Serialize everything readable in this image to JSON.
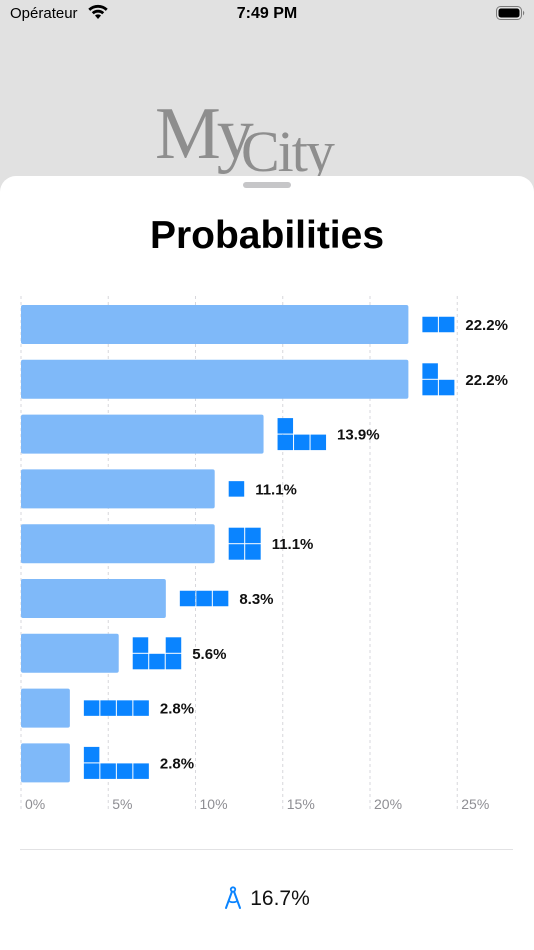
{
  "status_bar": {
    "carrier": "Opérateur",
    "time": "7:49 PM"
  },
  "background_logo": {
    "part1": "My",
    "part2": "City"
  },
  "sheet": {
    "title": "Probabilities"
  },
  "colors": {
    "bar": "#7fb9f9",
    "piece": "#0a84ff",
    "grid": "#d7d7dc",
    "tick": "#8e8e93"
  },
  "chart_data": {
    "type": "bar",
    "orientation": "horizontal",
    "title": "",
    "xlim": [
      0,
      25
    ],
    "grid": true,
    "x_ticks": [
      "0%",
      "5%",
      "10%",
      "15%",
      "20%",
      "25%"
    ],
    "rows": [
      {
        "value": 22.2,
        "label": "22.2%",
        "piece": [
          [
            0,
            0
          ],
          [
            1,
            0
          ]
        ]
      },
      {
        "value": 22.2,
        "label": "22.2%",
        "piece": [
          [
            0,
            0
          ],
          [
            0,
            1
          ],
          [
            1,
            1
          ]
        ]
      },
      {
        "value": 13.9,
        "label": "13.9%",
        "piece": [
          [
            0,
            0
          ],
          [
            0,
            1
          ],
          [
            1,
            1
          ],
          [
            2,
            1
          ]
        ]
      },
      {
        "value": 11.1,
        "label": "11.1%",
        "piece": [
          [
            0,
            0
          ]
        ]
      },
      {
        "value": 11.1,
        "label": "11.1%",
        "piece": [
          [
            0,
            0
          ],
          [
            1,
            0
          ],
          [
            0,
            1
          ],
          [
            1,
            1
          ]
        ]
      },
      {
        "value": 8.3,
        "label": "8.3%",
        "piece": [
          [
            0,
            0
          ],
          [
            1,
            0
          ],
          [
            2,
            0
          ]
        ]
      },
      {
        "value": 5.6,
        "label": "5.6%",
        "piece": [
          [
            0,
            0
          ],
          [
            2,
            0
          ],
          [
            0,
            1
          ],
          [
            1,
            1
          ],
          [
            2,
            1
          ]
        ]
      },
      {
        "value": 2.8,
        "label": "2.8%",
        "piece": [
          [
            0,
            0
          ],
          [
            1,
            0
          ],
          [
            2,
            0
          ],
          [
            3,
            0
          ]
        ]
      },
      {
        "value": 2.8,
        "label": "2.8%",
        "piece": [
          [
            0,
            0
          ],
          [
            0,
            1
          ],
          [
            1,
            1
          ],
          [
            2,
            1
          ],
          [
            3,
            1
          ]
        ]
      }
    ]
  },
  "footer": {
    "icon": "compass-drafting-icon",
    "value": "16.7%"
  }
}
